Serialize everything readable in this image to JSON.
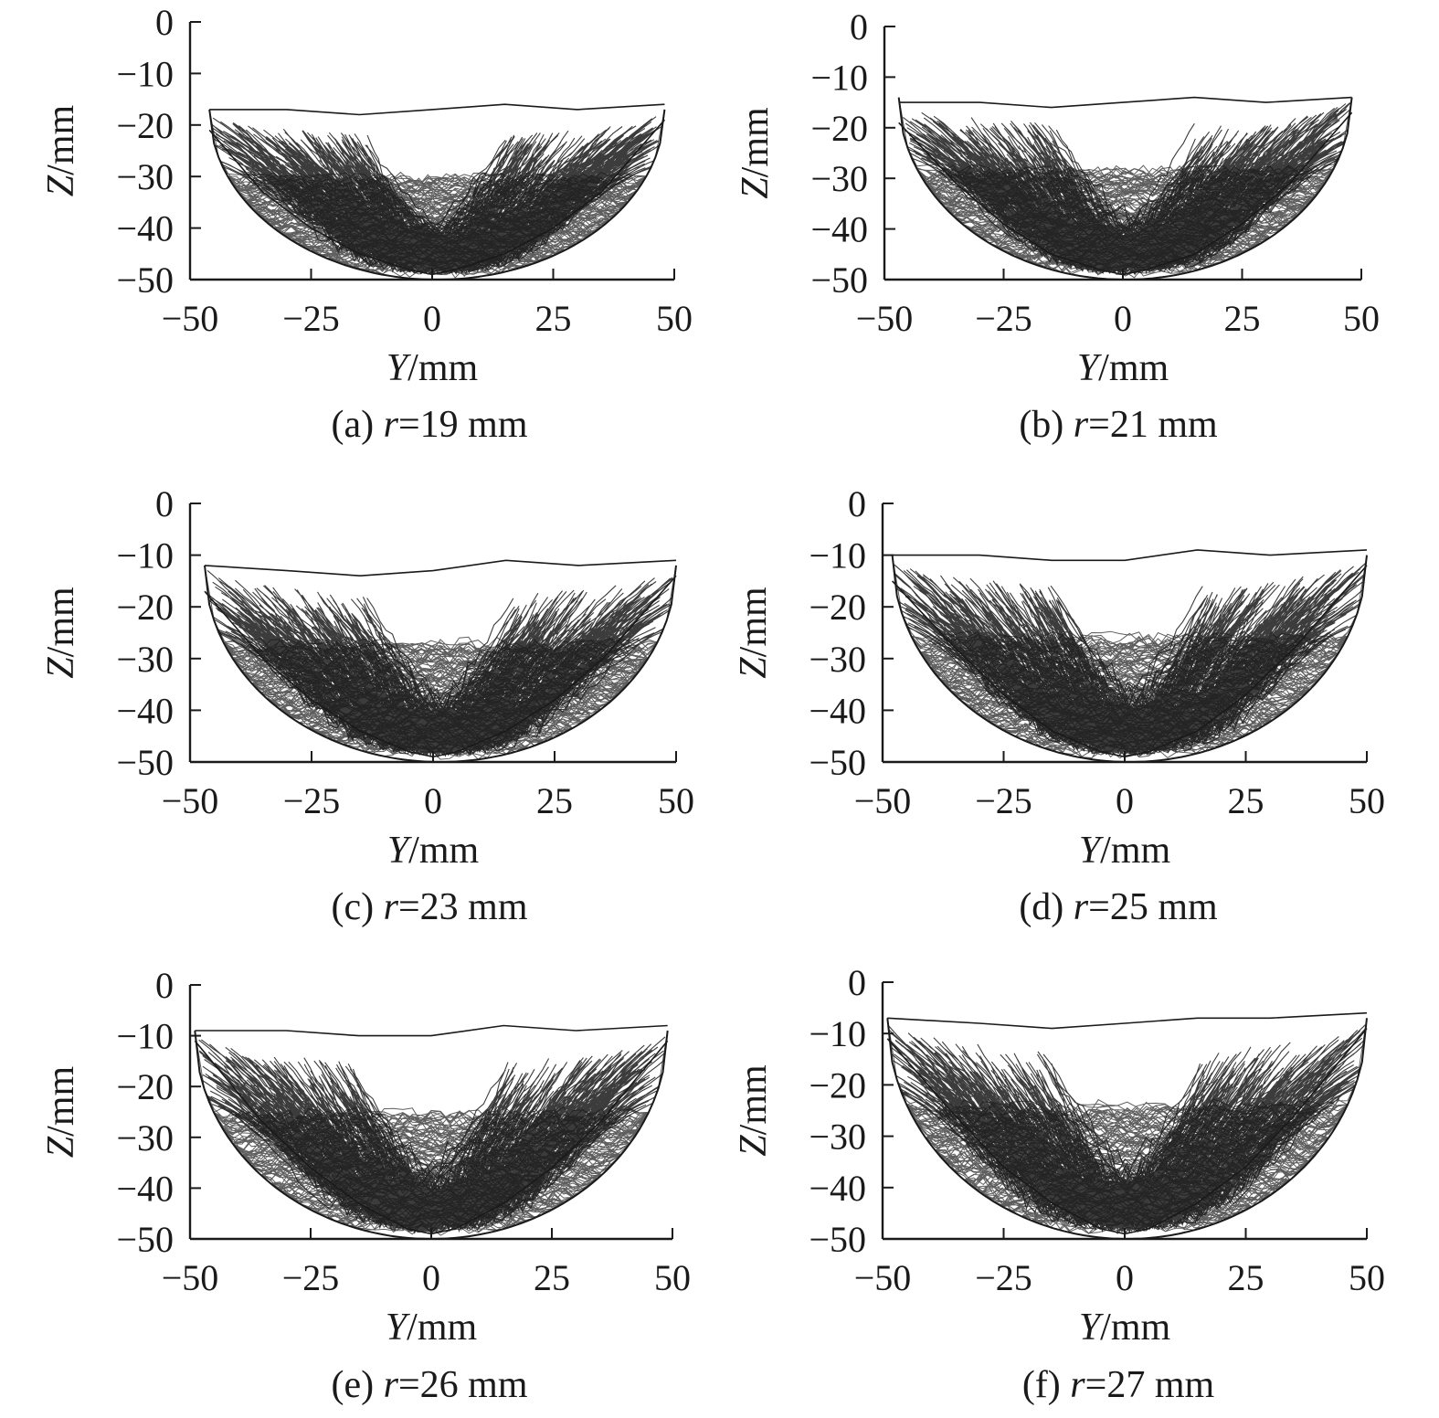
{
  "figure_title": "",
  "chart_data": [
    {
      "type": "line",
      "panel": "a",
      "caption_prefix": "(a) ",
      "caption_var": "r",
      "caption_value": "=19 mm",
      "xlabel_var": "Y",
      "xlabel_unit": "/mm",
      "ylabel_var": "Z",
      "ylabel_unit": "/mm",
      "xlim": [
        -50,
        50
      ],
      "ylim": [
        -50,
        0
      ],
      "xticks": [
        -50,
        -25,
        0,
        25,
        50
      ],
      "yticks": [
        0,
        -10,
        -20,
        -30,
        -40,
        -50
      ],
      "xtick_labels": [
        "−50",
        "−25",
        "0",
        "25",
        "50"
      ],
      "ytick_labels": [
        "0",
        "−10",
        "−20",
        "−30",
        "−40",
        "−50"
      ],
      "grid": false,
      "bowl": {
        "y_range": [
          -46,
          48
        ],
        "z_bottom": -50,
        "z_rim": -17
      },
      "series": [
        {
          "x": [
            -46,
            -30,
            -15,
            0,
            15,
            30,
            48
          ],
          "values": [
            -17,
            -17,
            -18,
            -17,
            -16,
            -17,
            -16
          ]
        },
        {
          "x": [
            -46,
            -35,
            -25,
            -15,
            -5,
            0,
            5,
            15,
            25,
            35,
            48
          ],
          "values": [
            -21,
            -33,
            -40,
            -45,
            -48,
            -49,
            -48,
            -45,
            -40,
            -33,
            -19
          ]
        }
      ],
      "color": "#1a1a1a"
    },
    {
      "type": "line",
      "panel": "b",
      "caption_prefix": "(b) ",
      "caption_var": "r",
      "caption_value": "=21 mm",
      "xlabel_var": "Y",
      "xlabel_unit": "/mm",
      "ylabel_var": "Z",
      "ylabel_unit": "/mm",
      "xlim": [
        -50,
        50
      ],
      "ylim": [
        -50,
        0
      ],
      "xticks": [
        -50,
        -25,
        0,
        25,
        50
      ],
      "yticks": [
        0,
        -10,
        -20,
        -30,
        -40,
        -50
      ],
      "xtick_labels": [
        "−50",
        "−25",
        "0",
        "25",
        "50"
      ],
      "ytick_labels": [
        "0",
        "−10",
        "−20",
        "−30",
        "−40",
        "−50"
      ],
      "grid": false,
      "bowl": {
        "y_range": [
          -47,
          48
        ],
        "z_bottom": -50,
        "z_rim": -14
      },
      "series": [
        {
          "x": [
            -47,
            -30,
            -15,
            0,
            15,
            30,
            48
          ],
          "values": [
            -15,
            -15,
            -16,
            -15,
            -14,
            -15,
            -14
          ]
        },
        {
          "x": [
            -47,
            -35,
            -25,
            -15,
            -5,
            0,
            5,
            15,
            25,
            35,
            48
          ],
          "values": [
            -19,
            -31,
            -39,
            -45,
            -48,
            -49,
            -48,
            -45,
            -39,
            -31,
            -17
          ]
        }
      ],
      "color": "#1a1a1a"
    },
    {
      "type": "line",
      "panel": "c",
      "caption_prefix": "(c) ",
      "caption_var": "r",
      "caption_value": "=23 mm",
      "xlabel_var": "Y",
      "xlabel_unit": "/mm",
      "ylabel_var": "Z",
      "ylabel_unit": "/mm",
      "xlim": [
        -50,
        50
      ],
      "ylim": [
        -50,
        0
      ],
      "xticks": [
        -50,
        -25,
        0,
        25,
        50
      ],
      "yticks": [
        0,
        -10,
        -20,
        -30,
        -40,
        -50
      ],
      "xtick_labels": [
        "−50",
        "−25",
        "0",
        "25",
        "50"
      ],
      "ytick_labels": [
        "0",
        "−10",
        "−20",
        "−30",
        "−40",
        "−50"
      ],
      "grid": false,
      "bowl": {
        "y_range": [
          -47,
          50
        ],
        "z_bottom": -50,
        "z_rim": -12
      },
      "series": [
        {
          "x": [
            -47,
            -30,
            -15,
            0,
            15,
            30,
            50
          ],
          "values": [
            -12,
            -13,
            -14,
            -13,
            -11,
            -12,
            -11
          ]
        },
        {
          "x": [
            -47,
            -35,
            -25,
            -15,
            -5,
            0,
            5,
            15,
            25,
            35,
            50
          ],
          "values": [
            -17,
            -30,
            -38,
            -44,
            -48,
            -49,
            -48,
            -44,
            -38,
            -30,
            -14
          ]
        }
      ],
      "color": "#1a1a1a"
    },
    {
      "type": "line",
      "panel": "d",
      "caption_prefix": "(d) ",
      "caption_var": "r",
      "caption_value": "=25 mm",
      "xlabel_var": "Y",
      "xlabel_unit": "/mm",
      "ylabel_var": "Z",
      "ylabel_unit": "/mm",
      "xlim": [
        -50,
        50
      ],
      "ylim": [
        -50,
        0
      ],
      "xticks": [
        -50,
        -25,
        0,
        25,
        50
      ],
      "yticks": [
        0,
        -10,
        -20,
        -30,
        -40,
        -50
      ],
      "xtick_labels": [
        "−50",
        "−25",
        "0",
        "25",
        "50"
      ],
      "ytick_labels": [
        "0",
        "−10",
        "−20",
        "−30",
        "−40",
        "−50"
      ],
      "grid": false,
      "bowl": {
        "y_range": [
          -48,
          50
        ],
        "z_bottom": -50,
        "z_rim": -10
      },
      "series": [
        {
          "x": [
            -48,
            -30,
            -15,
            0,
            15,
            30,
            50
          ],
          "values": [
            -10,
            -10,
            -11,
            -11,
            -9,
            -10,
            -9
          ]
        },
        {
          "x": [
            -48,
            -35,
            -25,
            -15,
            -5,
            0,
            5,
            15,
            25,
            35,
            50
          ],
          "values": [
            -15,
            -28,
            -37,
            -44,
            -48,
            -49,
            -48,
            -44,
            -37,
            -28,
            -12
          ]
        }
      ],
      "color": "#1a1a1a"
    },
    {
      "type": "line",
      "panel": "e",
      "caption_prefix": "(e) ",
      "caption_var": "r",
      "caption_value": "=26 mm",
      "xlabel_var": "Y",
      "xlabel_unit": "/mm",
      "ylabel_var": "Z",
      "ylabel_unit": "/mm",
      "xlim": [
        -50,
        50
      ],
      "ylim": [
        -50,
        0
      ],
      "xticks": [
        -50,
        -25,
        0,
        25,
        50
      ],
      "yticks": [
        0,
        -10,
        -20,
        -30,
        -40,
        -50
      ],
      "xtick_labels": [
        "−50",
        "−25",
        "0",
        "25",
        "50"
      ],
      "ytick_labels": [
        "0",
        "−10",
        "−20",
        "−30",
        "−40",
        "−50"
      ],
      "grid": false,
      "bowl": {
        "y_range": [
          -49,
          49
        ],
        "z_bottom": -50,
        "z_rim": -9
      },
      "series": [
        {
          "x": [
            -49,
            -30,
            -15,
            0,
            15,
            30,
            49
          ],
          "values": [
            -9,
            -9,
            -10,
            -10,
            -8,
            -9,
            -8
          ]
        },
        {
          "x": [
            -49,
            -35,
            -25,
            -15,
            -5,
            0,
            5,
            15,
            25,
            35,
            49
          ],
          "values": [
            -11,
            -27,
            -36,
            -43,
            -48,
            -49,
            -48,
            -43,
            -36,
            -27,
            -11
          ]
        }
      ],
      "color": "#1a1a1a"
    },
    {
      "type": "line",
      "panel": "f",
      "caption_prefix": "(f) ",
      "caption_var": "r",
      "caption_value": "=27 mm",
      "xlabel_var": "Y",
      "xlabel_unit": "/mm",
      "ylabel_var": "Z",
      "ylabel_unit": "/mm",
      "xlim": [
        -50,
        50
      ],
      "ylim": [
        -50,
        0
      ],
      "xticks": [
        -50,
        -25,
        0,
        25,
        50
      ],
      "yticks": [
        0,
        -10,
        -20,
        -30,
        -40,
        -50
      ],
      "xtick_labels": [
        "−50",
        "−25",
        "0",
        "25",
        "50"
      ],
      "ytick_labels": [
        "0",
        "−10",
        "−20",
        "−30",
        "−40",
        "−50"
      ],
      "grid": false,
      "bowl": {
        "y_range": [
          -49,
          50
        ],
        "z_bottom": -50,
        "z_rim": -7
      },
      "series": [
        {
          "x": [
            -49,
            -30,
            -15,
            0,
            15,
            30,
            50
          ],
          "values": [
            -7,
            -8,
            -9,
            -8,
            -7,
            -7,
            -6
          ]
        },
        {
          "x": [
            -49,
            -35,
            -25,
            -15,
            -5,
            0,
            5,
            15,
            25,
            35,
            50
          ],
          "values": [
            -11,
            -26,
            -36,
            -43,
            -48,
            -49,
            -48,
            -43,
            -36,
            -26,
            -9
          ]
        }
      ],
      "color": "#1a1a1a"
    }
  ]
}
